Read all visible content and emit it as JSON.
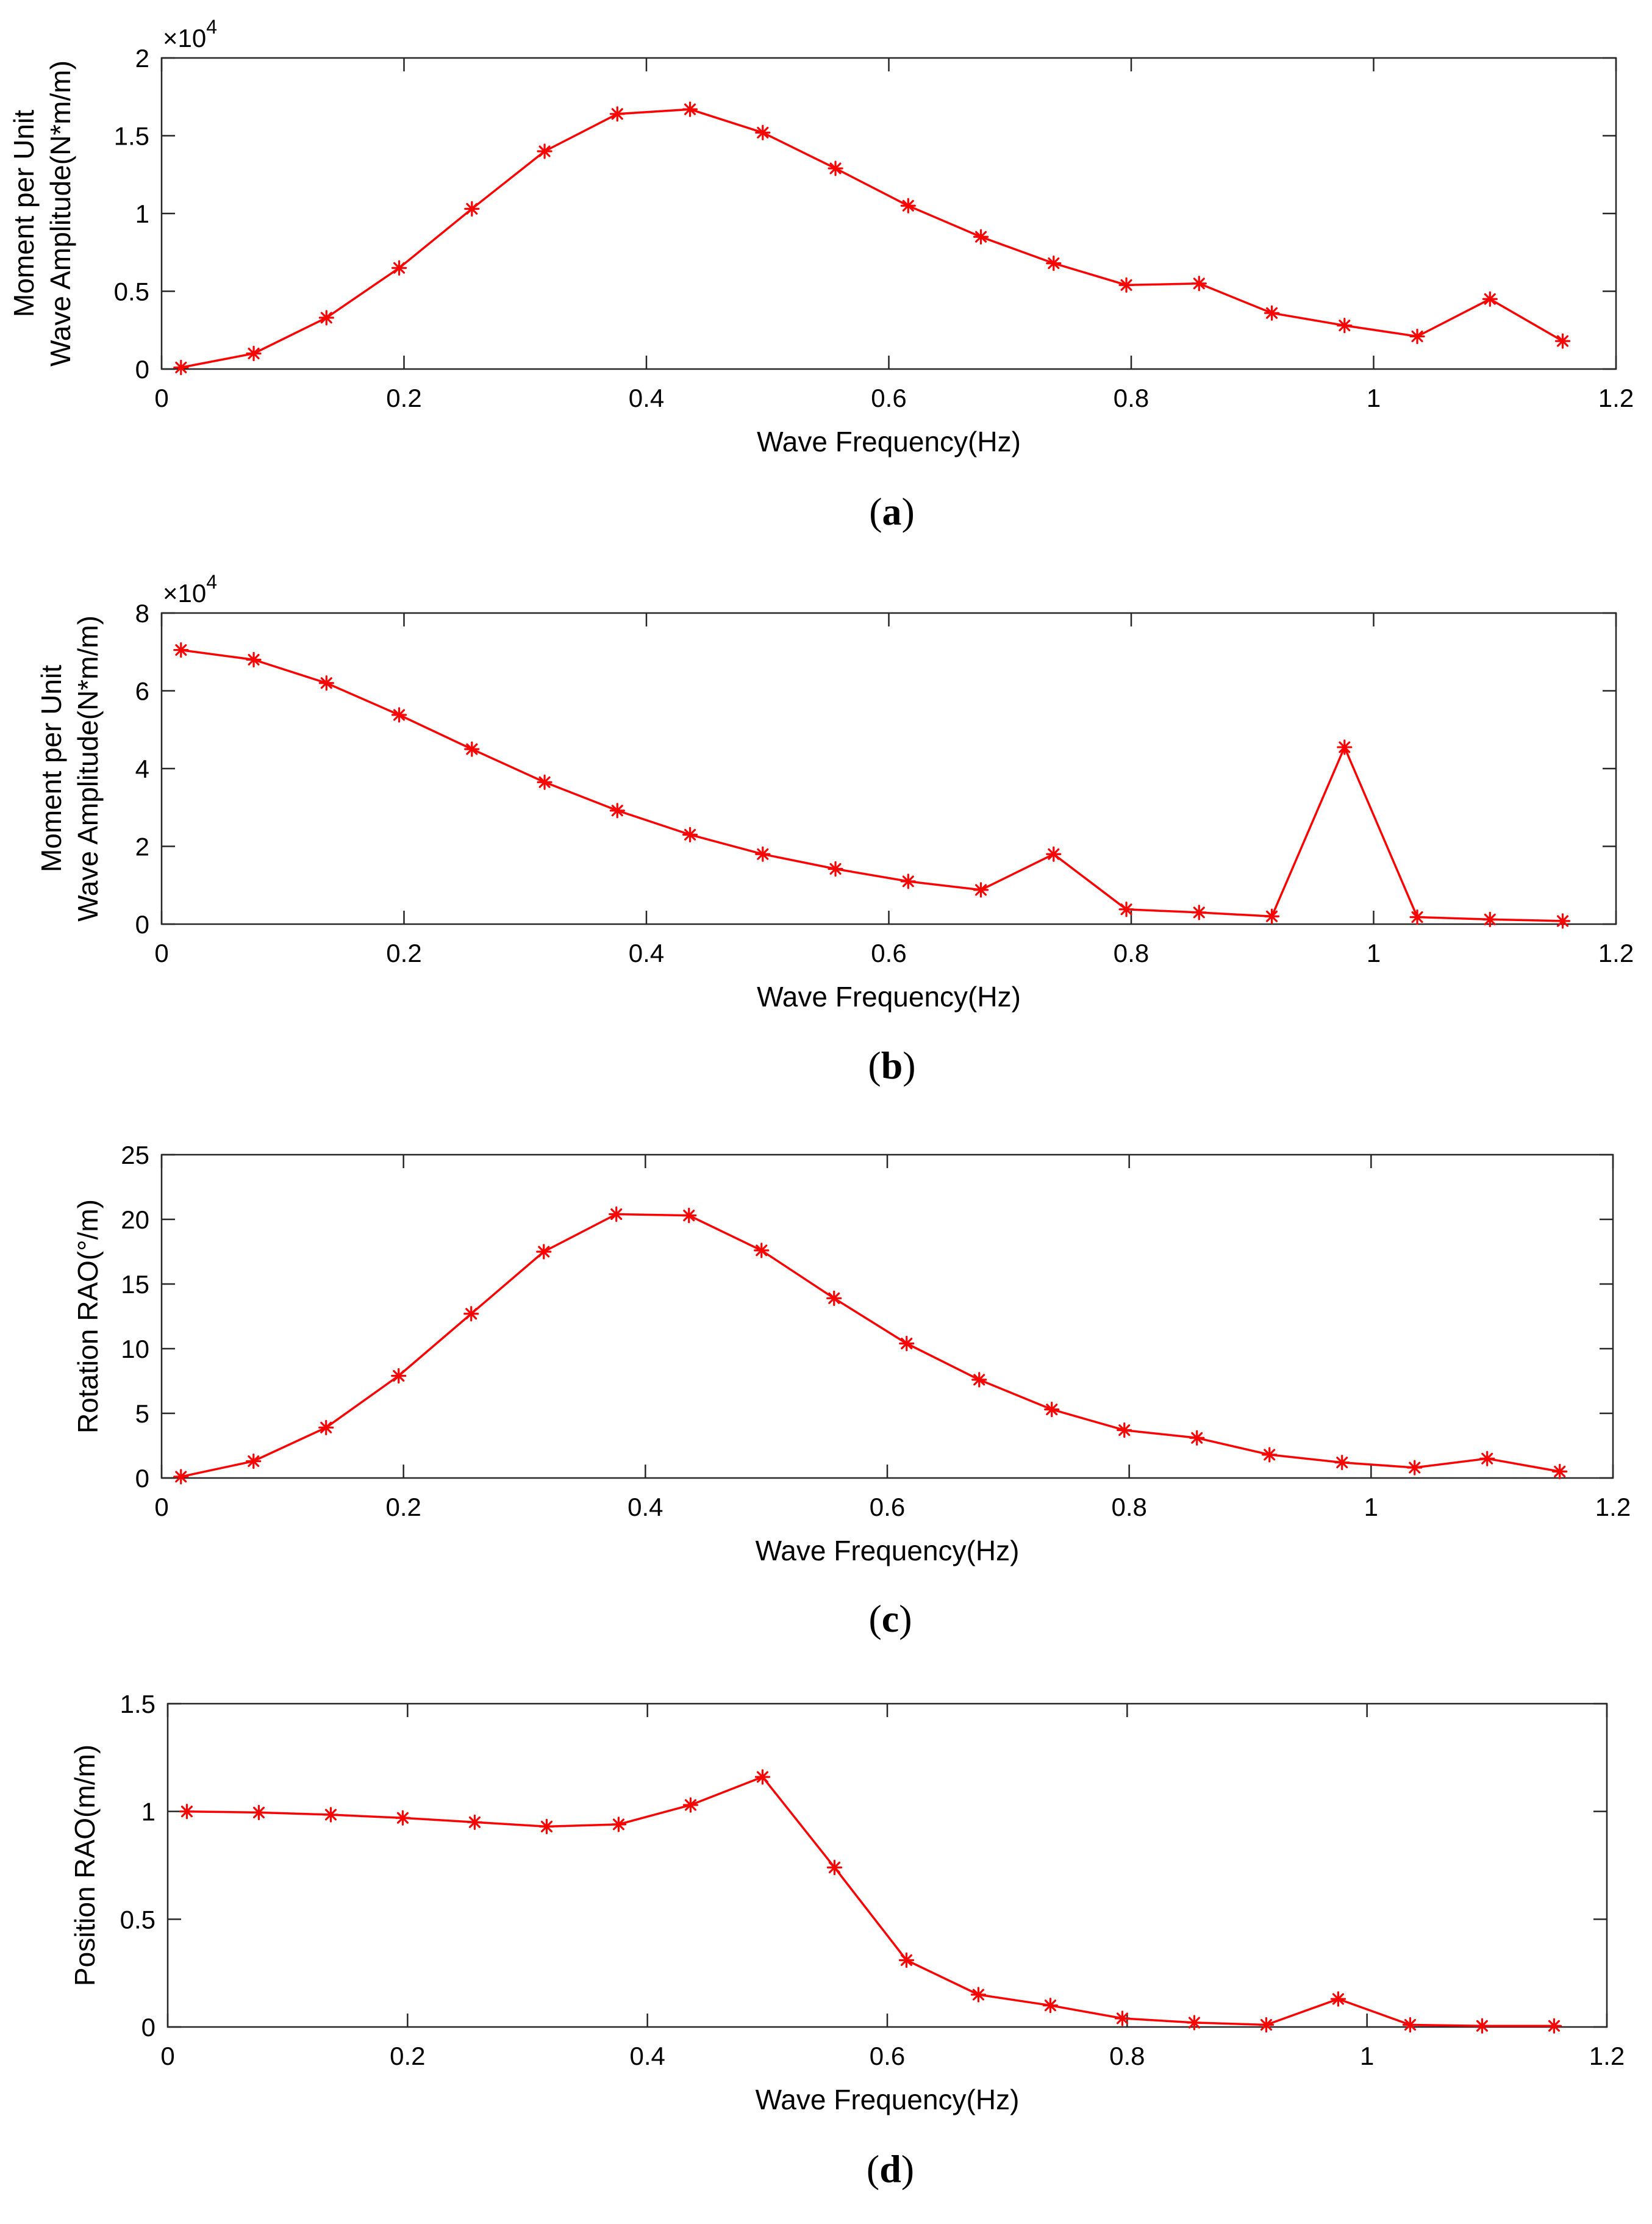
{
  "figure": {
    "series_color": "#ff0000",
    "marker_icon": "asterisk-icon"
  },
  "chart_data": [
    {
      "type": "line",
      "panel_label": "a",
      "caption_open": "(",
      "caption_close": ")",
      "xlabel": "Wave Frequency(Hz)",
      "ylabel_lines": [
        "Moment per Unit",
        "Wave Amplitude(N*m/m)"
      ],
      "y_multiplier": "×10",
      "y_exponent": "4",
      "xlim": [
        0,
        1.2
      ],
      "ylim": [
        0,
        2
      ],
      "xticks": [
        0,
        0.2,
        0.4,
        0.6,
        0.8,
        1,
        1.2
      ],
      "xtick_labels": [
        "0",
        "0.2",
        "0.4",
        "0.6",
        "0.8",
        "1",
        "1.2"
      ],
      "yticks": [
        0,
        0.5,
        1,
        1.5,
        2
      ],
      "ytick_labels": [
        "0",
        "0.5",
        "1",
        "1.5",
        "2"
      ],
      "x": [
        0.016,
        0.076,
        0.136,
        0.196,
        0.256,
        0.316,
        0.376,
        0.436,
        0.496,
        0.556,
        0.616,
        0.676,
        0.736,
        0.796,
        0.856,
        0.916,
        0.976,
        1.036,
        1.096,
        1.156
      ],
      "y": [
        0.01,
        0.1,
        0.33,
        0.65,
        1.03,
        1.4,
        1.64,
        1.67,
        1.52,
        1.29,
        1.05,
        0.85,
        0.68,
        0.54,
        0.55,
        0.36,
        0.28,
        0.21,
        0.45,
        0.18
      ]
    },
    {
      "type": "line",
      "panel_label": "b",
      "caption_open": "(",
      "caption_close": ")",
      "xlabel": "Wave Frequency(Hz)",
      "ylabel_lines": [
        "Moment per Unit",
        "Wave Amplitude(N*m/m)"
      ],
      "y_multiplier": "×10",
      "y_exponent": "4",
      "xlim": [
        0,
        1.2
      ],
      "ylim": [
        0,
        8
      ],
      "xticks": [
        0,
        0.2,
        0.4,
        0.6,
        0.8,
        1,
        1.2
      ],
      "xtick_labels": [
        "0",
        "0.2",
        "0.4",
        "0.6",
        "0.8",
        "1",
        "1.2"
      ],
      "yticks": [
        0,
        2,
        4,
        6,
        8
      ],
      "ytick_labels": [
        "0",
        "2",
        "4",
        "6",
        "8"
      ],
      "x": [
        0.016,
        0.076,
        0.136,
        0.196,
        0.256,
        0.316,
        0.376,
        0.436,
        0.496,
        0.556,
        0.616,
        0.676,
        0.736,
        0.796,
        0.856,
        0.916,
        0.976,
        1.036,
        1.096,
        1.156
      ],
      "y": [
        7.05,
        6.8,
        6.2,
        5.38,
        4.5,
        3.65,
        2.92,
        2.3,
        1.8,
        1.42,
        1.1,
        0.88,
        1.8,
        0.38,
        0.3,
        0.2,
        4.55,
        0.18,
        0.12,
        0.08
      ]
    },
    {
      "type": "line",
      "panel_label": "c",
      "caption_open": "(",
      "caption_close": ")",
      "xlabel": "Wave Frequency(Hz)",
      "ylabel_lines": [
        "Rotation RAO(°/m)"
      ],
      "y_multiplier": "",
      "y_exponent": "",
      "xlim": [
        0,
        1.2
      ],
      "ylim": [
        0,
        25
      ],
      "xticks": [
        0,
        0.2,
        0.4,
        0.6,
        0.8,
        1,
        1.2
      ],
      "xtick_labels": [
        "0",
        "0.2",
        "0.4",
        "0.6",
        "0.8",
        "1",
        "1.2"
      ],
      "yticks": [
        0,
        5,
        10,
        15,
        20,
        25
      ],
      "ytick_labels": [
        "0",
        "5",
        "10",
        "15",
        "20",
        "25"
      ],
      "x": [
        0.016,
        0.076,
        0.136,
        0.196,
        0.256,
        0.316,
        0.376,
        0.436,
        0.496,
        0.556,
        0.616,
        0.676,
        0.736,
        0.796,
        0.856,
        0.916,
        0.976,
        1.036,
        1.096,
        1.156
      ],
      "y": [
        0.1,
        1.3,
        3.9,
        7.9,
        12.7,
        17.5,
        20.4,
        20.3,
        17.6,
        13.9,
        10.4,
        7.6,
        5.3,
        3.7,
        3.1,
        1.8,
        1.2,
        0.8,
        1.5,
        0.5
      ]
    },
    {
      "type": "line",
      "panel_label": "d",
      "caption_open": "(",
      "caption_close": ")",
      "xlabel": "Wave Frequency(Hz)",
      "ylabel_lines": [
        "Position RAO(m/m)"
      ],
      "y_multiplier": "",
      "y_exponent": "",
      "xlim": [
        0,
        1.2
      ],
      "ylim": [
        0,
        1.5
      ],
      "xticks": [
        0,
        0.2,
        0.4,
        0.6,
        0.8,
        1,
        1.2
      ],
      "xtick_labels": [
        "0",
        "0.2",
        "0.4",
        "0.6",
        "0.8",
        "1",
        "1.2"
      ],
      "yticks": [
        0,
        0.5,
        1,
        1.5
      ],
      "ytick_labels": [
        "0",
        "0.5",
        "1",
        "1.5"
      ],
      "x": [
        0.016,
        0.076,
        0.136,
        0.196,
        0.256,
        0.316,
        0.376,
        0.436,
        0.496,
        0.556,
        0.616,
        0.676,
        0.736,
        0.796,
        0.856,
        0.916,
        0.976,
        1.036,
        1.096,
        1.156
      ],
      "y": [
        1.0,
        0.995,
        0.985,
        0.97,
        0.95,
        0.93,
        0.94,
        1.03,
        1.16,
        0.74,
        0.31,
        0.15,
        0.1,
        0.04,
        0.02,
        0.01,
        0.13,
        0.01,
        0.005,
        0.005
      ]
    }
  ]
}
